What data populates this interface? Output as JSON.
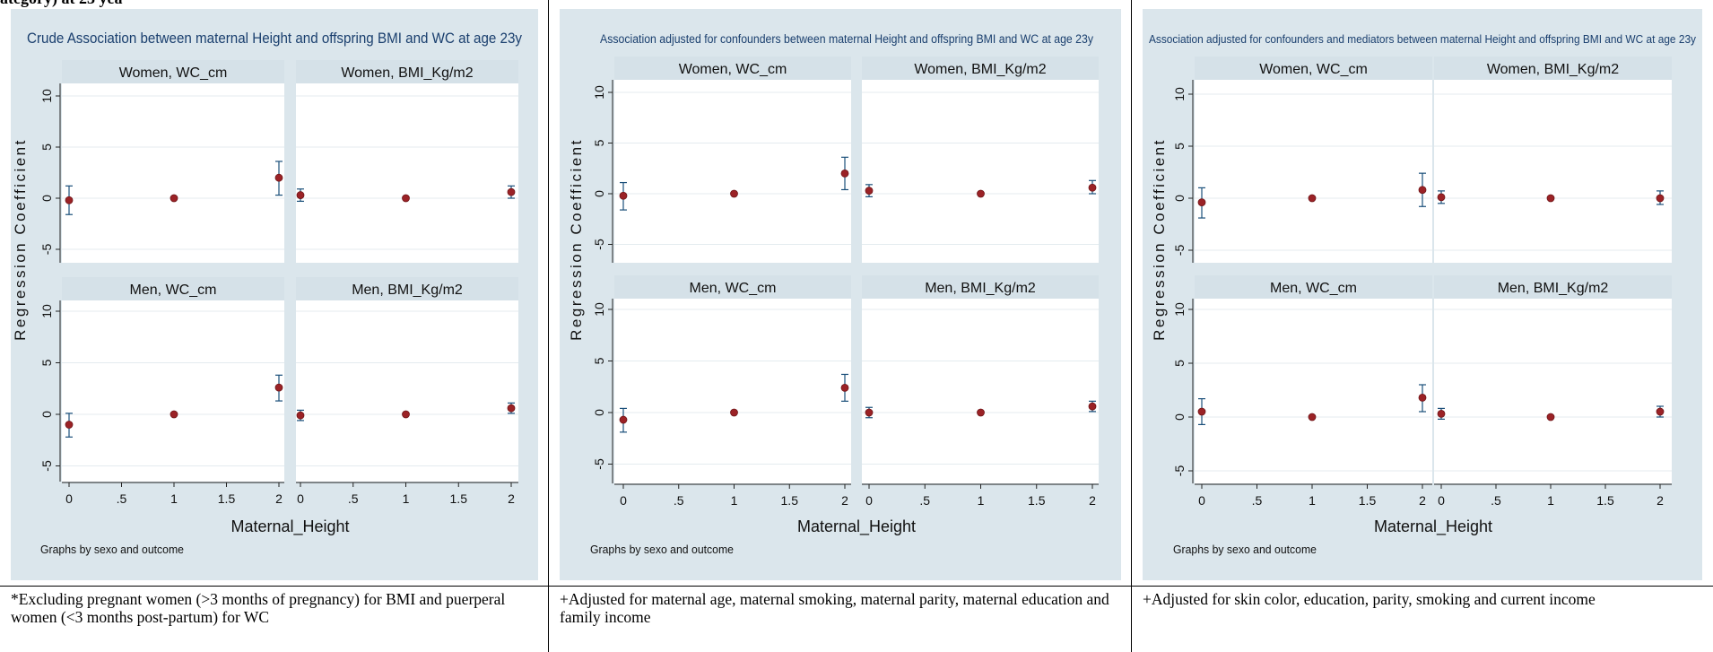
{
  "top_text": "ategory) at 23 yea",
  "xlabel": "Maternal_Height",
  "ylabel": "Regression Coefficient",
  "note": "Graphs by sexo and outcome",
  "x_ticks": [
    "0",
    ".5",
    "1",
    "1.5",
    "2"
  ],
  "y_ticks": [
    "10",
    "5",
    "0",
    "-5"
  ],
  "colors": {
    "background": "#dbe6ec",
    "plot": "#ffffff",
    "header": "#d5e1e8",
    "marker": "#9b2226",
    "ci": "#1a4f7a",
    "grid": "#e4ebef"
  },
  "footnotes": [
    "*Excluding pregnant women (>3 months of pregnancy) for BMI and puerperal women (<3 months post-partum) for WC",
    "+Adjusted for maternal age, maternal smoking, maternal parity, maternal education and family income",
    "+Adjusted for skin color, education, parity, smoking and current income"
  ],
  "chart_data": [
    {
      "type": "scatter",
      "title": "Crude Association between maternal Height and offspring BMI and WC at age 23y",
      "xlabel": "Maternal_Height",
      "ylabel": "Regression Coefficient",
      "xlim": [
        0,
        2
      ],
      "ylim": [
        -5,
        10
      ],
      "facets": [
        {
          "label": "Women, WC_cm",
          "points": [
            {
              "x": 0,
              "y": -0.2,
              "lo": -1.6,
              "hi": 1.2
            },
            {
              "x": 1,
              "y": 0,
              "lo": 0,
              "hi": 0
            },
            {
              "x": 2,
              "y": 2.0,
              "lo": 0.3,
              "hi": 3.6
            }
          ]
        },
        {
          "label": "Women, BMI_Kg/m2",
          "points": [
            {
              "x": 0,
              "y": 0.3,
              "lo": -0.3,
              "hi": 0.9
            },
            {
              "x": 1,
              "y": 0,
              "lo": 0,
              "hi": 0
            },
            {
              "x": 2,
              "y": 0.6,
              "lo": 0,
              "hi": 1.2
            }
          ]
        },
        {
          "label": "Men, WC_cm",
          "points": [
            {
              "x": 0,
              "y": -1.0,
              "lo": -2.2,
              "hi": 0.1
            },
            {
              "x": 1,
              "y": 0,
              "lo": 0,
              "hi": 0
            },
            {
              "x": 2,
              "y": 2.6,
              "lo": 1.3,
              "hi": 3.8
            }
          ]
        },
        {
          "label": "Men, BMI_Kg/m2",
          "points": [
            {
              "x": 0,
              "y": -0.1,
              "lo": -0.6,
              "hi": 0.4
            },
            {
              "x": 1,
              "y": 0,
              "lo": 0,
              "hi": 0
            },
            {
              "x": 2,
              "y": 0.6,
              "lo": 0.1,
              "hi": 1.1
            }
          ]
        }
      ]
    },
    {
      "type": "scatter",
      "title": "Association adjusted for confounders between maternal Height and offspring BMI and WC at age 23y",
      "xlabel": "Maternal_Height",
      "ylabel": "Regression Coefficient",
      "xlim": [
        0,
        2
      ],
      "ylim": [
        -5,
        10
      ],
      "facets": [
        {
          "label": "Women, WC_cm",
          "points": [
            {
              "x": 0,
              "y": -0.2,
              "lo": -1.6,
              "hi": 1.1
            },
            {
              "x": 1,
              "y": 0,
              "lo": 0,
              "hi": 0
            },
            {
              "x": 2,
              "y": 2.0,
              "lo": 0.4,
              "hi": 3.6
            }
          ]
        },
        {
          "label": "Women, BMI_Kg/m2",
          "points": [
            {
              "x": 0,
              "y": 0.3,
              "lo": -0.3,
              "hi": 0.9
            },
            {
              "x": 1,
              "y": 0,
              "lo": 0,
              "hi": 0
            },
            {
              "x": 2,
              "y": 0.6,
              "lo": 0,
              "hi": 1.3
            }
          ]
        },
        {
          "label": "Men, WC_cm",
          "points": [
            {
              "x": 0,
              "y": -0.7,
              "lo": -1.9,
              "hi": 0.4
            },
            {
              "x": 1,
              "y": 0,
              "lo": 0,
              "hi": 0
            },
            {
              "x": 2,
              "y": 2.4,
              "lo": 1.1,
              "hi": 3.7
            }
          ]
        },
        {
          "label": "Men, BMI_Kg/m2",
          "points": [
            {
              "x": 0,
              "y": 0,
              "lo": -0.5,
              "hi": 0.5
            },
            {
              "x": 1,
              "y": 0,
              "lo": 0,
              "hi": 0
            },
            {
              "x": 2,
              "y": 0.6,
              "lo": 0.1,
              "hi": 1.1
            }
          ]
        }
      ]
    },
    {
      "type": "scatter",
      "title": "Association adjusted for confounders and mediators between maternal Height and offspring BMI and WC at age 23y",
      "xlabel": "Maternal_Height",
      "ylabel": "Regression Coefficient",
      "xlim": [
        0,
        2
      ],
      "ylim": [
        -5,
        10
      ],
      "facets": [
        {
          "label": "Women, WC_cm",
          "points": [
            {
              "x": 0,
              "y": -0.4,
              "lo": -1.9,
              "hi": 1.0
            },
            {
              "x": 1,
              "y": 0,
              "lo": 0,
              "hi": 0
            },
            {
              "x": 2,
              "y": 0.8,
              "lo": -0.8,
              "hi": 2.4
            }
          ]
        },
        {
          "label": "Women, BMI_Kg/m2",
          "points": [
            {
              "x": 0,
              "y": 0.1,
              "lo": -0.5,
              "hi": 0.7
            },
            {
              "x": 1,
              "y": 0,
              "lo": 0,
              "hi": 0
            },
            {
              "x": 2,
              "y": 0,
              "lo": -0.6,
              "hi": 0.7
            }
          ]
        },
        {
          "label": "Men, WC_cm",
          "points": [
            {
              "x": 0,
              "y": 0.5,
              "lo": -0.7,
              "hi": 1.7
            },
            {
              "x": 1,
              "y": 0,
              "lo": 0,
              "hi": 0
            },
            {
              "x": 2,
              "y": 1.8,
              "lo": 0.5,
              "hi": 3.0
            }
          ]
        },
        {
          "label": "Men, BMI_Kg/m2",
          "points": [
            {
              "x": 0,
              "y": 0.3,
              "lo": -0.2,
              "hi": 0.8
            },
            {
              "x": 1,
              "y": 0,
              "lo": 0,
              "hi": 0
            },
            {
              "x": 2,
              "y": 0.5,
              "lo": 0,
              "hi": 1.0
            }
          ]
        }
      ]
    }
  ]
}
